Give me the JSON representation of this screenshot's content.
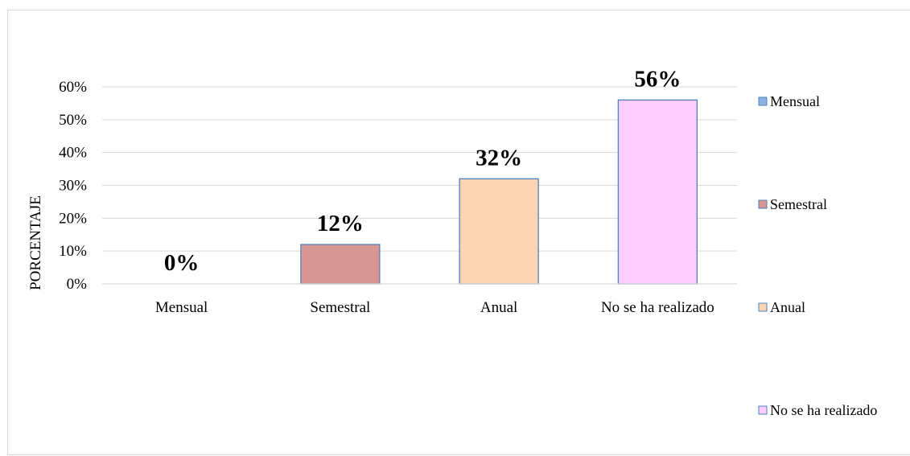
{
  "chart_data": {
    "type": "bar",
    "categories": [
      "Mensual",
      "Semestral",
      "Anual",
      "No se ha realizado"
    ],
    "values": [
      0,
      12,
      32,
      56
    ],
    "data_labels": [
      "0%",
      "12%",
      "32%",
      "56%"
    ],
    "colors": [
      "#8db3e2",
      "#d99594",
      "#fbd4b4",
      "#ffccff"
    ],
    "bar_stroke": "#4f81bd",
    "ylabel": "PORCENTAJE",
    "xlabel": "",
    "ylim": [
      0,
      60
    ],
    "y_ticks": [
      "0%",
      "10%",
      "20%",
      "30%",
      "40%",
      "50%",
      "60%"
    ],
    "y_tick_values": [
      0,
      10,
      20,
      30,
      40,
      50,
      60
    ],
    "grid": true,
    "legend": {
      "placement": "right",
      "entries": [
        "Mensual",
        "Semestral",
        "Anual",
        "No se ha realizado"
      ]
    }
  }
}
